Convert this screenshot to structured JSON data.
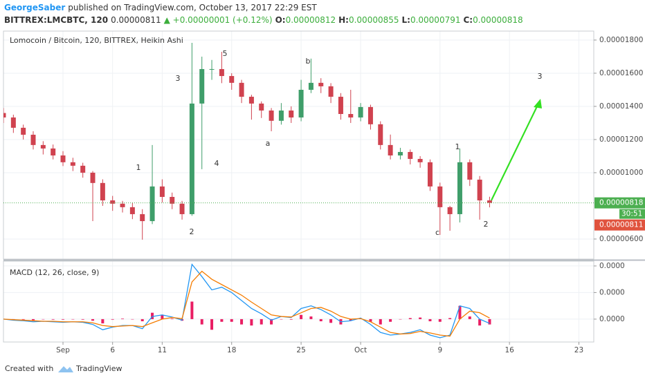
{
  "header": {
    "author": "GeorgeSaber",
    "published": "published on TradingView.com, October 13, 2017 22:29 EST",
    "symbol": "BITTREX:LMCBTC, 120",
    "last": "0.00000811",
    "change": "▲ +0.00000001 (+0.12%)",
    "ohlc": [
      {
        "label": "O:",
        "value": "0.00000812"
      },
      {
        "label": "H:",
        "value": "0.00000855"
      },
      {
        "label": "L:",
        "value": "0.00000791"
      },
      {
        "label": "C:",
        "value": "0.00000818"
      }
    ]
  },
  "chart_data": [
    {
      "type": "candlestick",
      "title": "Lomocoin / Bitcoin, 120, BITTREX, Heikin Ashi",
      "up_color": "#3f9e6a",
      "down_color": "#d0424f",
      "grid": true,
      "x": [
        -5,
        -4,
        -3,
        -2,
        -1,
        0,
        1,
        2,
        3,
        4,
        5,
        6,
        7,
        8,
        9,
        10,
        11,
        12,
        13,
        14,
        15,
        16,
        17,
        18,
        19,
        20,
        21,
        22,
        23,
        24,
        25,
        26,
        27,
        28,
        29,
        30,
        31,
        32,
        33,
        34,
        35,
        36,
        37,
        38,
        39,
        40,
        41,
        42,
        43,
        44
      ],
      "open": [
        1.36e-05,
        1.333e-05,
        1.271e-05,
        1.229e-05,
        1.167e-05,
        1.146e-05,
        1.104e-05,
        1.063e-05,
        1.042e-05,
        1e-05,
        9.38e-06,
        8.33e-06,
        8.13e-06,
        7.92e-06,
        7.5e-06,
        7.08e-06,
        9.17e-06,
        8.54e-06,
        8.13e-06,
        7.5e-06,
        1.417e-05,
        1.625e-05,
        1.625e-05,
        1.583e-05,
        1.542e-05,
        1.458e-05,
        1.417e-05,
        1.375e-05,
        1.313e-05,
        1.375e-05,
        1.333e-05,
        1.5e-05,
        1.542e-05,
        1.521e-05,
        1.458e-05,
        1.354e-05,
        1.333e-05,
        1.396e-05,
        1.292e-05,
        1.167e-05,
        1.104e-05,
        1.125e-05,
        1.083e-05,
        1.063e-05,
        9.17e-06,
        7.92e-06,
        7.5e-06,
        1.063e-05,
        9.58e-06,
        8.33e-06
      ],
      "high": [
        1.39e-05,
        1.35e-05,
        1.29e-05,
        1.25e-05,
        1.19e-05,
        1.17e-05,
        1.13e-05,
        1.09e-05,
        1.06e-05,
        1.01e-05,
        9.6e-06,
        8.6e-06,
        8.3e-06,
        8.2e-06,
        7.8e-06,
        1.167e-05,
        9.6e-06,
        8.8e-06,
        8.3e-06,
        1.783e-05,
        1.7e-05,
        1.68e-05,
        1.729e-05,
        1.6e-05,
        1.56e-05,
        1.47e-05,
        1.43e-05,
        1.39e-05,
        1.42e-05,
        1.4e-05,
        1.56e-05,
        1.688e-05,
        1.57e-05,
        1.54e-05,
        1.48e-05,
        1.5e-05,
        1.42e-05,
        1.41e-05,
        1.31e-05,
        1.23e-05,
        1.15e-05,
        1.14e-05,
        1.1e-05,
        1.08e-05,
        9.4e-06,
        8e-06,
        1.146e-05,
        1.08e-05,
        9.8e-06,
        8.55e-06
      ],
      "low": [
        1.3e-05,
        1.24e-05,
        1.2e-05,
        1.14e-05,
        1.11e-05,
        1.08e-05,
        1.04e-05,
        1.01e-05,
        9.7e-06,
        7.08e-06,
        8e-06,
        7.7e-06,
        7.6e-06,
        7.2e-06,
        5.96e-06,
        6.9e-06,
        8.2e-06,
        7.8e-06,
        7.17e-06,
        7.4e-06,
        1.021e-05,
        1.56e-05,
        1.54e-05,
        1.5e-05,
        1.42e-05,
        1.32e-05,
        1.33e-05,
        1.25e-05,
        1.29e-05,
        1.3e-05,
        1.31e-05,
        1.48e-05,
        1.48e-05,
        1.42e-05,
        1.32e-05,
        1.3e-05,
        1.31e-05,
        1.26e-05,
        1.14e-05,
        1.08e-05,
        1.08e-05,
        1.05e-05,
        1.03e-05,
        8.9e-06,
        6.25e-06,
        6.5e-06,
        7e-06,
        9.2e-06,
        7.17e-06,
        7.91e-06
      ],
      "close": [
        1.333e-05,
        1.271e-05,
        1.229e-05,
        1.167e-05,
        1.146e-05,
        1.104e-05,
        1.063e-05,
        1.042e-05,
        1e-05,
        9.38e-06,
        8.33e-06,
        8.13e-06,
        7.92e-06,
        7.5e-06,
        7.08e-06,
        9.17e-06,
        8.54e-06,
        8.13e-06,
        7.5e-06,
        1.417e-05,
        1.625e-05,
        1.625e-05,
        1.583e-05,
        1.542e-05,
        1.458e-05,
        1.417e-05,
        1.375e-05,
        1.313e-05,
        1.375e-05,
        1.333e-05,
        1.5e-05,
        1.542e-05,
        1.521e-05,
        1.458e-05,
        1.354e-05,
        1.333e-05,
        1.396e-05,
        1.292e-05,
        1.167e-05,
        1.104e-05,
        1.125e-05,
        1.083e-05,
        1.063e-05,
        9.17e-06,
        7.92e-06,
        7.5e-06,
        1.063e-05,
        9.58e-06,
        8.33e-06,
        8.18e-06
      ],
      "xlim": [
        -5,
        54.5
      ],
      "xticks": [
        {
          "value": 1,
          "label": "Sep"
        },
        6,
        11,
        18,
        25,
        {
          "value": 31,
          "label": "Oct"
        },
        {
          "value": 39,
          "label": "9"
        },
        {
          "value": 46,
          "label": "16"
        },
        {
          "value": 53,
          "label": "23"
        }
      ],
      "ylim": [
        4.79e-06,
        1.854e-05
      ],
      "yticks": [
        {
          "value": 6e-06,
          "label": "0.00000600"
        },
        {
          "value": 1e-05,
          "label": "0.00001000"
        },
        {
          "value": 1.2e-05,
          "label": "0.00001200"
        },
        {
          "value": 1.4e-05,
          "label": "0.00001400"
        },
        {
          "value": 1.6e-05,
          "label": "0.00001600"
        },
        {
          "value": 1.8e-05,
          "label": "0.00001800"
        }
      ],
      "markers": [
        {
          "value": 8.18e-06,
          "label": "0.00000818",
          "color": "#4caf50",
          "countdown": "30:51",
          "line_style": "dotted"
        },
        {
          "value": 8.11e-06,
          "label": "0.00000811",
          "color": "#e0533e"
        }
      ],
      "annotations": [
        "1",
        "2",
        "3",
        "4",
        "5",
        "a",
        "b",
        "c",
        "1",
        "2",
        "3"
      ]
    },
    {
      "type": "macd",
      "title": "MACD (12, 26, close, 9)",
      "grid": true,
      "ylim": [
        -4.3e-07,
        1.09e-06
      ],
      "yticks": [
        {
          "value": 0,
          "label": "0.0000"
        },
        {
          "value": 5e-07,
          "label": "0.0000"
        },
        {
          "value": 1e-06,
          "label": "0.0000"
        }
      ],
      "histogram": {
        "color": "#e91e63",
        "values": [
          0,
          -1e-08,
          -1e-08,
          -2e-08,
          0,
          -1e-08,
          -1e-08,
          0,
          -1e-08,
          -3e-08,
          -8e-08,
          -1e-08,
          1e-08,
          0,
          -4e-08,
          1.2e-07,
          8e-08,
          1e-08,
          -3e-08,
          3.3e-07,
          -1e-07,
          -2e-07,
          -5e-08,
          -5e-08,
          -1e-07,
          -1.2e-07,
          -1e-07,
          -1e-07,
          0,
          -1e-08,
          8e-08,
          5e-08,
          -4e-08,
          -7e-08,
          -1e-07,
          -3e-08,
          1e-08,
          -5e-08,
          -1e-07,
          -5e-08,
          0,
          2e-08,
          3e-08,
          -4e-08,
          -5e-08,
          2e-08,
          2.5e-07,
          5e-08,
          -1.2e-07,
          -1e-07
        ]
      },
      "series": [
        {
          "color": "#2196f3",
          "values": [
            0,
            -2e-08,
            -3e-08,
            -5e-08,
            -4e-08,
            -5e-08,
            -6e-08,
            -5e-08,
            -6e-08,
            -1e-07,
            -2e-07,
            -1.5e-07,
            -1.2e-07,
            -1.2e-07,
            -1.8e-07,
            5e-08,
            8e-08,
            4e-08,
            -2e-08,
            1.03e-06,
            8e-07,
            5.5e-07,
            6e-07,
            5e-07,
            3.5e-07,
            2e-07,
            1e-07,
            -2e-08,
            5e-08,
            3e-08,
            2e-07,
            2.5e-07,
            1.8e-07,
            8e-08,
            -5e-08,
            -3e-08,
            2e-08,
            -1e-07,
            -2.5e-07,
            -3e-07,
            -2.8e-07,
            -2.5e-07,
            -2e-07,
            -3e-07,
            -3.5e-07,
            -3e-07,
            2.5e-07,
            2e-07,
            0,
            -8e-08
          ]
        },
        {
          "color": "#f57c00",
          "values": [
            0,
            -1e-08,
            -2e-08,
            -3e-08,
            -4e-08,
            -4e-08,
            -5e-08,
            -5e-08,
            -5e-08,
            -7e-08,
            -1.2e-07,
            -1.4e-07,
            -1.3e-07,
            -1.2e-07,
            -1.4e-07,
            -7e-08,
            0,
            3e-08,
            1e-08,
            7e-07,
            9e-07,
            7.5e-07,
            6.5e-07,
            5.5e-07,
            4.5e-07,
            3.2e-07,
            2e-07,
            8e-08,
            5e-08,
            4e-08,
            1.2e-07,
            2e-07,
            2.2e-07,
            1.5e-07,
            5e-08,
            0,
            1e-08,
            -5e-08,
            -1.5e-07,
            -2.5e-07,
            -2.8e-07,
            -2.7e-07,
            -2.3e-07,
            -2.6e-07,
            -3e-07,
            -3.2e-07,
            0,
            1.5e-07,
            1.2e-07,
            2e-08
          ]
        }
      ]
    }
  ],
  "footer": {
    "created": "Created with",
    "brand": "TradingView"
  }
}
